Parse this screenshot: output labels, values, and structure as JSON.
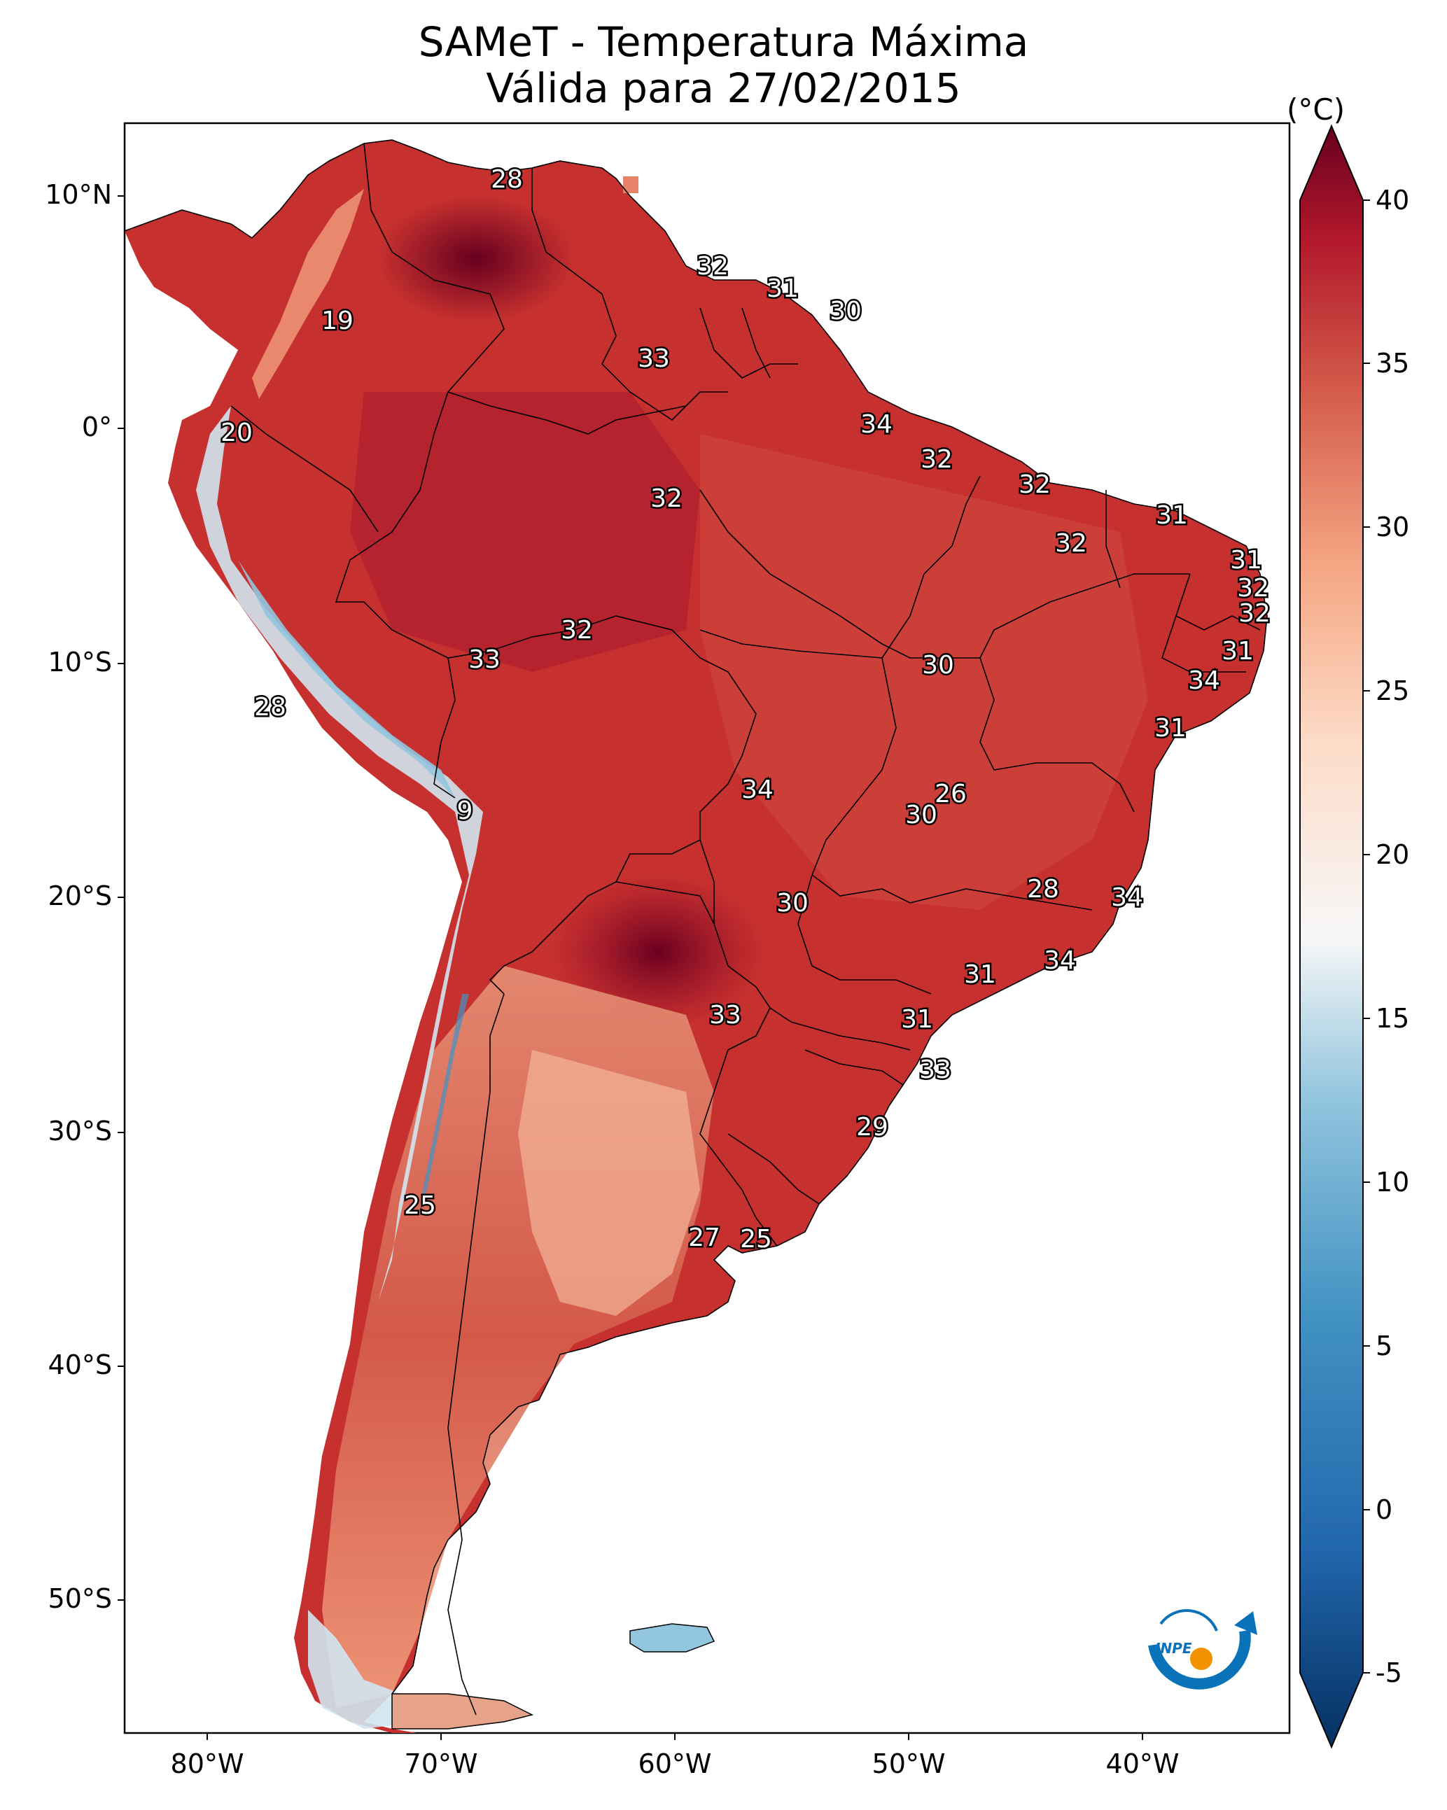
{
  "title": {
    "line1": "SAMeT - Temperatura Máxima",
    "line2": "Válida para 27/02/2015"
  },
  "lat_ticks": [
    "10°N",
    "0°",
    "10°S",
    "20°S",
    "30°S",
    "40°S",
    "50°S"
  ],
  "lon_ticks": [
    "80°W",
    "70°W",
    "60°W",
    "50°W",
    "40°W"
  ],
  "colorbar": {
    "unit": "(°C)",
    "ticks": [
      "40",
      "35",
      "30",
      "25",
      "20",
      "15",
      "10",
      "5",
      "0",
      "-5"
    ],
    "colors": {
      "max": "#67001f",
      "warm": "#d6604d",
      "mid": "#f7f7f7",
      "cool": "#92c5de",
      "min": "#053061"
    }
  },
  "station_labels": [
    "28",
    "32",
    "31",
    "30",
    "19",
    "33",
    "34",
    "20",
    "32",
    "32",
    "32",
    "31",
    "32",
    "31",
    "32",
    "32",
    "33",
    "32",
    "30",
    "31",
    "34",
    "28",
    "31",
    "9",
    "34",
    "26",
    "30",
    "30",
    "28",
    "34",
    "34",
    "31",
    "33",
    "31",
    "33",
    "29",
    "25",
    "27",
    "25"
  ],
  "logo": {
    "text": "INPE",
    "colors": {
      "arc": "#0a72b8",
      "dot": "#f39200"
    }
  }
}
